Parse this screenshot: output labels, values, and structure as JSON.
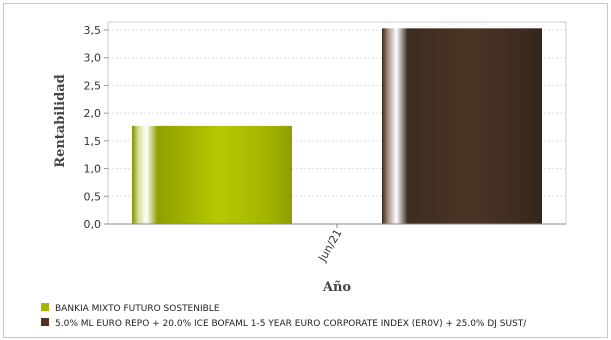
{
  "chart_data": {
    "type": "bar",
    "categories": [
      "Jun/21"
    ],
    "series": [
      {
        "name": "BANKIA MIXTO FUTURO SOSTENIBLE",
        "values": [
          1.77
        ],
        "color": "#a4b800"
      },
      {
        "name": "5.0% ML EURO REPO + 20.0% ICE BOFAML 1-5 YEAR EURO CORPORATE INDEX (ER0V) + 25.0% DJ SUST/",
        "values": [
          3.53
        ],
        "color": "#4a3426"
      }
    ],
    "xlabel": "Año",
    "ylabel": "Rentabilidad",
    "ylim": [
      0,
      3.6
    ],
    "yticks": [
      "0,0",
      "0,5",
      "1,0",
      "1,5",
      "2,0",
      "2,5",
      "3,0",
      "3,5"
    ],
    "grid": true,
    "legend_position": "bottom-left"
  }
}
